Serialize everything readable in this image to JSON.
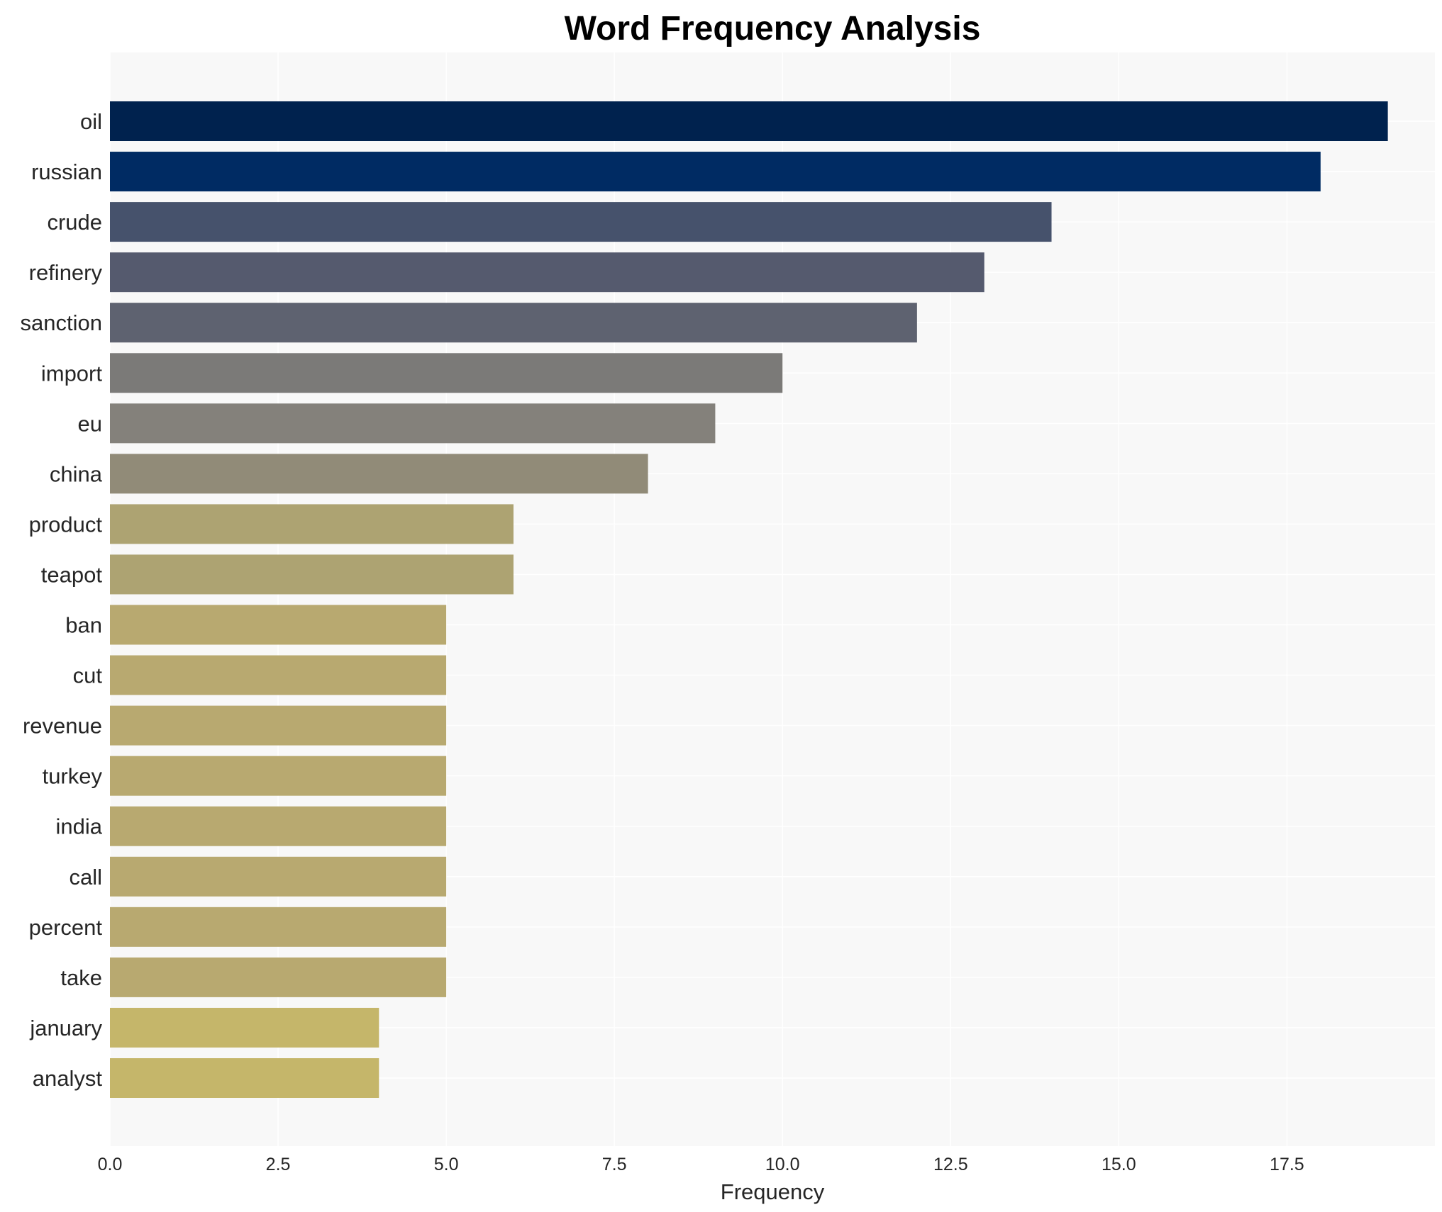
{
  "chart_data": {
    "type": "bar",
    "orientation": "horizontal",
    "title": "Word Frequency Analysis",
    "xlabel": "Frequency",
    "ylabel": "",
    "xlim": [
      0,
      19.7
    ],
    "x_ticks": [
      "0.0",
      "2.5",
      "5.0",
      "7.5",
      "10.0",
      "12.5",
      "15.0",
      "17.5"
    ],
    "x_tick_values": [
      0,
      2.5,
      5,
      7.5,
      10,
      12.5,
      15,
      17.5
    ],
    "grid": true,
    "background_color": "#f8f8f8",
    "grid_color": "#ffffff",
    "categories": [
      "oil",
      "russian",
      "crude",
      "refinery",
      "sanction",
      "import",
      "eu",
      "china",
      "product",
      "teapot",
      "ban",
      "cut",
      "revenue",
      "turkey",
      "india",
      "call",
      "percent",
      "take",
      "january",
      "analyst"
    ],
    "values": [
      19,
      18,
      14,
      13,
      12,
      10,
      9,
      8,
      6,
      6,
      5,
      5,
      5,
      5,
      5,
      5,
      5,
      5,
      4,
      4
    ],
    "colors": [
      "#00224e",
      "#002b63",
      "#46526c",
      "#555a6e",
      "#5e6270",
      "#7b7a78",
      "#84817b",
      "#918b78",
      "#ada372",
      "#ada372",
      "#b8a970",
      "#b8a970",
      "#b8a970",
      "#b8a970",
      "#b8a970",
      "#b8a970",
      "#b8a970",
      "#b8a970",
      "#c5b66a",
      "#c5b66a"
    ]
  }
}
